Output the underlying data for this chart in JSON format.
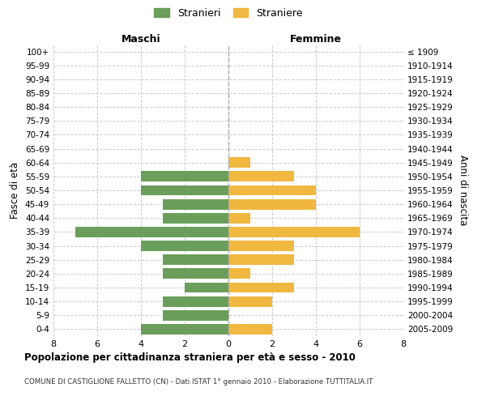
{
  "age_groups": [
    "100+",
    "95-99",
    "90-94",
    "85-89",
    "80-84",
    "75-79",
    "70-74",
    "65-69",
    "60-64",
    "55-59",
    "50-54",
    "45-49",
    "40-44",
    "35-39",
    "30-34",
    "25-29",
    "20-24",
    "15-19",
    "10-14",
    "5-9",
    "0-4"
  ],
  "birth_years": [
    "≤ 1909",
    "1910-1914",
    "1915-1919",
    "1920-1924",
    "1925-1929",
    "1930-1934",
    "1935-1939",
    "1940-1944",
    "1945-1949",
    "1950-1954",
    "1955-1959",
    "1960-1964",
    "1965-1969",
    "1970-1974",
    "1975-1979",
    "1980-1984",
    "1985-1989",
    "1990-1994",
    "1995-1999",
    "2000-2004",
    "2005-2009"
  ],
  "maschi": [
    0,
    0,
    0,
    0,
    0,
    0,
    0,
    0,
    0,
    4,
    4,
    3,
    3,
    7,
    4,
    3,
    3,
    2,
    3,
    3,
    4
  ],
  "femmine": [
    0,
    0,
    0,
    0,
    0,
    0,
    0,
    0,
    1,
    3,
    4,
    4,
    1,
    6,
    3,
    3,
    1,
    3,
    2,
    0,
    2
  ],
  "color_maschi": "#6a9e5a",
  "color_femmine": "#f0b840",
  "title": "Popolazione per cittadinanza straniera per età e sesso - 2010",
  "subtitle": "COMUNE DI CASTIGLIONE FALLETTO (CN) - Dati ISTAT 1° gennaio 2010 - Elaborazione TUTTITALIA.IT",
  "xlabel_left": "Maschi",
  "xlabel_right": "Femmine",
  "ylabel_left": "Fasce di età",
  "ylabel_right": "Anni di nascita",
  "legend_maschi": "Stranieri",
  "legend_femmine": "Straniere",
  "xlim": 8,
  "background_color": "#ffffff",
  "grid_color": "#cccccc"
}
